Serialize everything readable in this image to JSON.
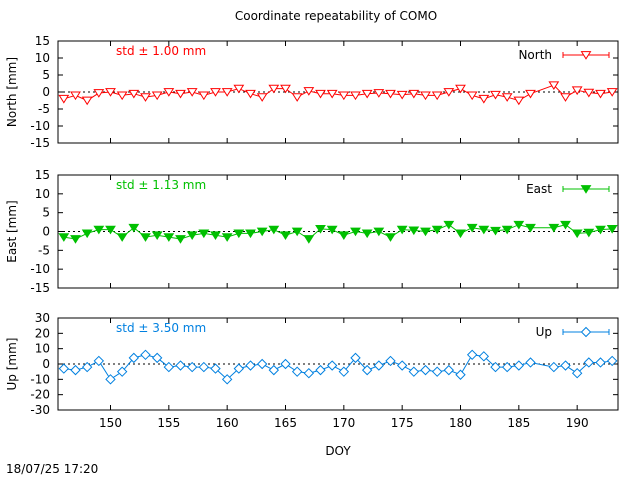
{
  "title": "Coordinate repeatability of COMO",
  "timestamp": "18/07/25 17:20",
  "chart_data": [
    {
      "type": "line",
      "name": "north",
      "title": "Coordinate repeatability of COMO",
      "ylabel": "North [mm]",
      "legend": "North",
      "legend_position": "top-right",
      "annotation": "std ± 1.00 mm",
      "color": "#ff0000",
      "marker": "triangle-down-open",
      "ylim": [
        -15,
        15
      ],
      "yticks": [
        "15",
        "10",
        "5",
        "0",
        "-5",
        "-10",
        "-15"
      ],
      "ytick_values": [
        15,
        10,
        5,
        0,
        -5,
        -10,
        -15
      ],
      "x": [
        146,
        147,
        148,
        149,
        150,
        151,
        152,
        153,
        154,
        155,
        156,
        157,
        158,
        159,
        160,
        161,
        162,
        163,
        164,
        165,
        166,
        167,
        168,
        169,
        170,
        171,
        172,
        173,
        174,
        175,
        176,
        177,
        178,
        179,
        180,
        181,
        182,
        183,
        184,
        185,
        186,
        188,
        189,
        190,
        191,
        192,
        193
      ],
      "values": [
        -2,
        -1,
        -2.5,
        -0.3,
        0,
        -1,
        -0.5,
        -1.5,
        -1,
        0,
        -0.5,
        0,
        -1,
        0,
        0,
        1,
        -0.5,
        -1.5,
        1,
        1,
        -1.5,
        0.3,
        -0.5,
        -0.5,
        -1,
        -1,
        -0.5,
        -0.3,
        -0.5,
        -0.8,
        -0.5,
        -1,
        -1,
        0,
        1,
        -1,
        -2,
        -0.8,
        -1.5,
        -2.5,
        -0.5,
        2,
        -1.5,
        0.5,
        -0.2,
        -0.5,
        0
      ]
    },
    {
      "type": "line",
      "name": "east",
      "ylabel": "East [mm]",
      "legend": "East",
      "legend_position": "top-right",
      "annotation": "std ± 1.13 mm",
      "color": "#00c000",
      "marker": "triangle-down-filled",
      "ylim": [
        -15,
        15
      ],
      "yticks": [
        "15",
        "10",
        "5",
        "0",
        "-5",
        "-10",
        "-15"
      ],
      "ytick_values": [
        15,
        10,
        5,
        0,
        -5,
        -10,
        -15
      ],
      "x": [
        146,
        147,
        148,
        149,
        150,
        151,
        152,
        153,
        154,
        155,
        156,
        157,
        158,
        159,
        160,
        161,
        162,
        163,
        164,
        165,
        166,
        167,
        168,
        169,
        170,
        171,
        172,
        173,
        174,
        175,
        176,
        177,
        178,
        179,
        180,
        181,
        182,
        183,
        184,
        185,
        186,
        188,
        189,
        190,
        191,
        192,
        193
      ],
      "values": [
        -1.5,
        -2,
        -0.5,
        0.5,
        0.5,
        -1.5,
        1,
        -1.5,
        -1,
        -1.5,
        -2,
        -1,
        -0.5,
        -1,
        -1.5,
        -0.5,
        -0.5,
        0,
        0.5,
        -1,
        0,
        -2,
        0.7,
        0.5,
        -1,
        0,
        -0.5,
        0,
        -1.5,
        0.5,
        0.3,
        0,
        0.5,
        1.8,
        -0.5,
        1,
        0.5,
        0.2,
        0.5,
        1.8,
        1,
        1,
        1.8,
        -0.5,
        -0.3,
        0.5,
        0.7
      ]
    },
    {
      "type": "line",
      "name": "up",
      "ylabel": "Up [mm]",
      "xlabel": "DOY",
      "legend": "Up",
      "legend_position": "top-right",
      "annotation": "std ± 3.50 mm",
      "color": "#0080e0",
      "marker": "diamond-open",
      "ylim": [
        -30,
        30
      ],
      "yticks": [
        "30",
        "20",
        "10",
        "0",
        "-10",
        "-20",
        "-30"
      ],
      "ytick_values": [
        30,
        20,
        10,
        0,
        -10,
        -20,
        -30
      ],
      "xlim": [
        145.5,
        193.5
      ],
      "xticks": [
        "150",
        "155",
        "160",
        "165",
        "170",
        "175",
        "180",
        "185",
        "190"
      ],
      "xtick_values": [
        150,
        155,
        160,
        165,
        170,
        175,
        180,
        185,
        190
      ],
      "x": [
        146,
        147,
        148,
        149,
        150,
        151,
        152,
        153,
        154,
        155,
        156,
        157,
        158,
        159,
        160,
        161,
        162,
        163,
        164,
        165,
        166,
        167,
        168,
        169,
        170,
        171,
        172,
        173,
        174,
        175,
        176,
        177,
        178,
        179,
        180,
        181,
        182,
        183,
        184,
        185,
        186,
        188,
        189,
        190,
        191,
        192,
        193
      ],
      "values": [
        -3,
        -4,
        -2,
        2,
        -10,
        -5,
        4,
        6,
        4,
        -2,
        -1,
        -2,
        -2,
        -3,
        -10,
        -3,
        -1,
        0,
        -4,
        0,
        -5,
        -6,
        -4,
        -1,
        -5,
        4,
        -4,
        -1,
        2,
        -1,
        -5,
        -4,
        -5,
        -4,
        -7,
        6,
        5,
        -2,
        -2,
        -1,
        1,
        -2,
        -1,
        -6,
        1,
        1,
        2
      ]
    }
  ]
}
